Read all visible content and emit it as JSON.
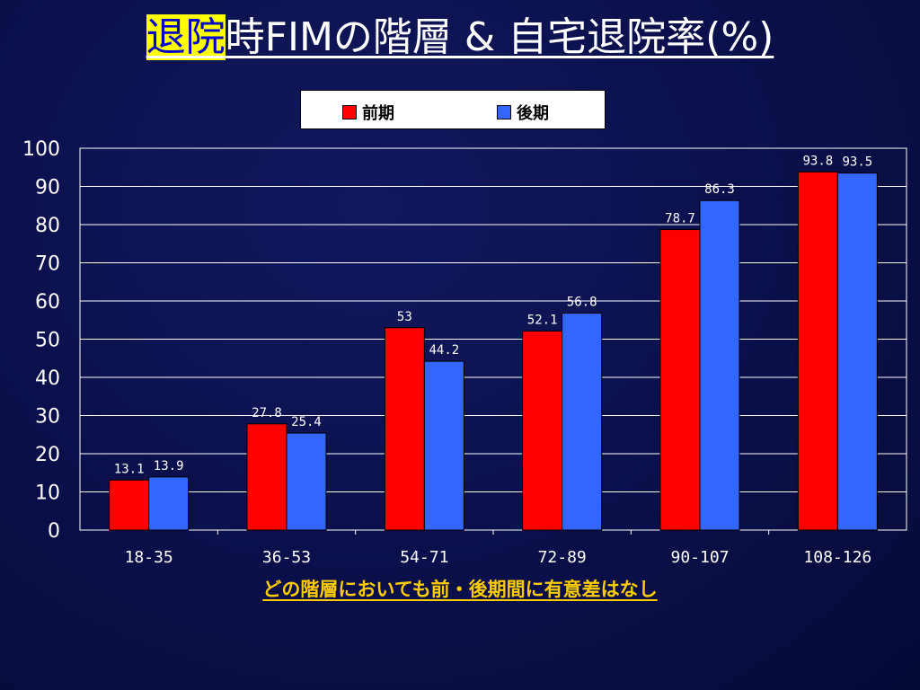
{
  "title": {
    "highlight": "退院",
    "rest": "時FIMの階層 & 自宅退院率(%)"
  },
  "legend": [
    {
      "label": "前期",
      "color": "#ff0000"
    },
    {
      "label": "後期",
      "color": "#3366ff"
    }
  ],
  "footnote": "どの階層においても前・後期間に有意差はなし",
  "colors": {
    "background": "#0a0f4a",
    "highlight": "#ffff00",
    "footnote": "#ffcc00"
  },
  "chart_data": {
    "type": "bar",
    "categories": [
      "18-35",
      "36-53",
      "54-71",
      "72-89",
      "90-107",
      "108-126"
    ],
    "series": [
      {
        "name": "前期",
        "values": [
          13.1,
          27.8,
          53,
          52.1,
          78.7,
          93.8
        ],
        "labels": [
          "13.1",
          "27.8",
          "53",
          "52.1",
          "78.7",
          "93.8"
        ],
        "color": "#ff0000"
      },
      {
        "name": "後期",
        "values": [
          13.9,
          25.4,
          44.2,
          56.8,
          86.3,
          93.5
        ],
        "labels": [
          "13.9",
          "25.4",
          "44.2",
          "56.8",
          "86.3",
          "93.5"
        ],
        "color": "#3366ff"
      }
    ],
    "yticks": [
      "0",
      "10",
      "20",
      "30",
      "40",
      "50",
      "60",
      "70",
      "80",
      "90",
      "100"
    ],
    "ylim": [
      0,
      100
    ],
    "grid": true,
    "legend_position": "top-center"
  }
}
